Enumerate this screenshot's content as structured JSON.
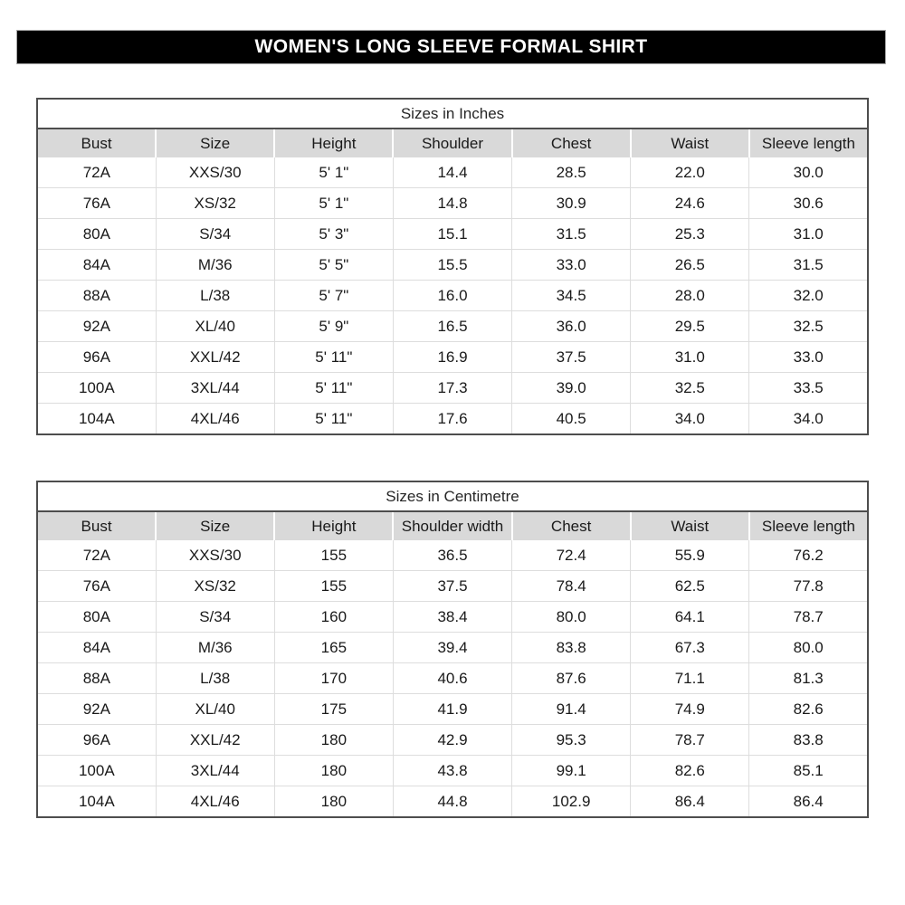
{
  "banner": {
    "title": "WOMEN'S LONG SLEEVE FORMAL SHIRT"
  },
  "tables": [
    {
      "title": "Sizes in Inches",
      "columns": [
        "Bust",
        "Size",
        "Height",
        "Shoulder",
        "Chest",
        "Waist",
        "Sleeve length"
      ],
      "rows": [
        [
          "72A",
          "XXS/30",
          "5' 1\"",
          "14.4",
          "28.5",
          "22.0",
          "30.0"
        ],
        [
          "76A",
          "XS/32",
          "5' 1\"",
          "14.8",
          "30.9",
          "24.6",
          "30.6"
        ],
        [
          "80A",
          "S/34",
          "5' 3\"",
          "15.1",
          "31.5",
          "25.3",
          "31.0"
        ],
        [
          "84A",
          "M/36",
          "5' 5\"",
          "15.5",
          "33.0",
          "26.5",
          "31.5"
        ],
        [
          "88A",
          "L/38",
          "5' 7\"",
          "16.0",
          "34.5",
          "28.0",
          "32.0"
        ],
        [
          "92A",
          "XL/40",
          "5' 9\"",
          "16.5",
          "36.0",
          "29.5",
          "32.5"
        ],
        [
          "96A",
          "XXL/42",
          "5' 11\"",
          "16.9",
          "37.5",
          "31.0",
          "33.0"
        ],
        [
          "100A",
          "3XL/44",
          "5' 11\"",
          "17.3",
          "39.0",
          "32.5",
          "33.5"
        ],
        [
          "104A",
          "4XL/46",
          "5' 11\"",
          "17.6",
          "40.5",
          "34.0",
          "34.0"
        ]
      ]
    },
    {
      "title": "Sizes in Centimetre",
      "columns": [
        "Bust",
        "Size",
        "Height",
        "Shoulder width",
        "Chest",
        "Waist",
        "Sleeve length"
      ],
      "rows": [
        [
          "72A",
          "XXS/30",
          "155",
          "36.5",
          "72.4",
          "55.9",
          "76.2"
        ],
        [
          "76A",
          "XS/32",
          "155",
          "37.5",
          "78.4",
          "62.5",
          "77.8"
        ],
        [
          "80A",
          "S/34",
          "160",
          "38.4",
          "80.0",
          "64.1",
          "78.7"
        ],
        [
          "84A",
          "M/36",
          "165",
          "39.4",
          "83.8",
          "67.3",
          "80.0"
        ],
        [
          "88A",
          "L/38",
          "170",
          "40.6",
          "87.6",
          "71.1",
          "81.3"
        ],
        [
          "92A",
          "XL/40",
          "175",
          "41.9",
          "91.4",
          "74.9",
          "82.6"
        ],
        [
          "96A",
          "XXL/42",
          "180",
          "42.9",
          "95.3",
          "78.7",
          "83.8"
        ],
        [
          "100A",
          "3XL/44",
          "180",
          "43.8",
          "99.1",
          "82.6",
          "85.1"
        ],
        [
          "104A",
          "4XL/46",
          "180",
          "44.8",
          "102.9",
          "86.4",
          "86.4"
        ]
      ]
    }
  ],
  "colors": {
    "banner_bg": "#000000",
    "banner_text": "#ffffff",
    "header_row_bg": "#d9d9d9",
    "table_outer_border": "#4d4d4d",
    "gridline": "#dddddd",
    "text": "#1a1a1a"
  }
}
